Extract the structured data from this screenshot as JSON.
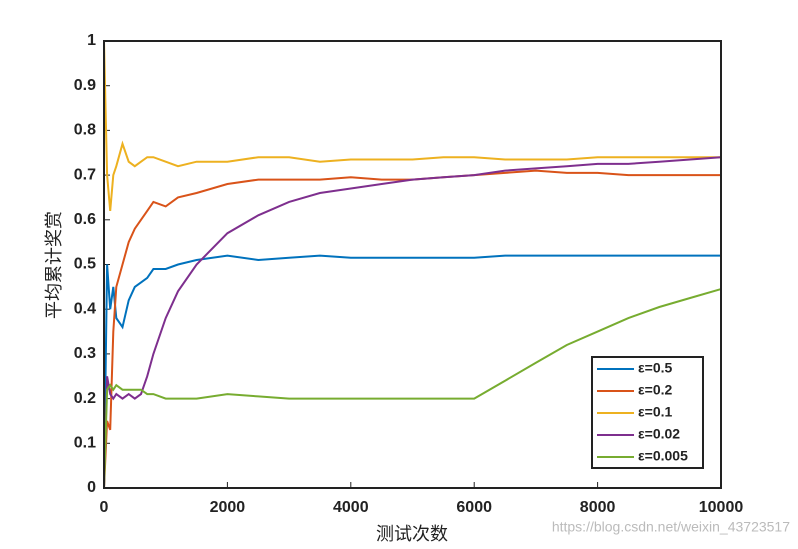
{
  "chart_data": {
    "type": "line",
    "x_label": "测试次数",
    "y_label": "平均累计奖赏",
    "watermark": "https://blog.csdn.net/weixin_43723517",
    "x": [
      0,
      50,
      100,
      150,
      200,
      300,
      400,
      500,
      600,
      700,
      800,
      1000,
      1200,
      1500,
      2000,
      2500,
      3000,
      3500,
      4000,
      4500,
      5000,
      5500,
      6000,
      6500,
      7000,
      7500,
      8000,
      8500,
      9000,
      9500,
      10000
    ],
    "series": [
      {
        "name": "ε=0.5",
        "color": "#0072bd",
        "values": [
          0,
          0.5,
          0.4,
          0.45,
          0.38,
          0.36,
          0.42,
          0.45,
          0.46,
          0.47,
          0.49,
          0.49,
          0.5,
          0.51,
          0.52,
          0.51,
          0.515,
          0.52,
          0.515,
          0.515,
          0.515,
          0.515,
          0.515,
          0.52,
          0.52,
          0.52,
          0.52,
          0.52,
          0.52,
          0.52,
          0.52
        ]
      },
      {
        "name": "ε=0.2",
        "color": "#d95319",
        "values": [
          0,
          0.15,
          0.13,
          0.35,
          0.45,
          0.5,
          0.55,
          0.58,
          0.6,
          0.62,
          0.64,
          0.63,
          0.65,
          0.66,
          0.68,
          0.69,
          0.69,
          0.69,
          0.695,
          0.69,
          0.69,
          0.695,
          0.7,
          0.705,
          0.71,
          0.705,
          0.705,
          0.7,
          0.7,
          0.7,
          0.7
        ]
      },
      {
        "name": "ε=0.1",
        "color": "#edb120",
        "values": [
          1,
          0.7,
          0.62,
          0.7,
          0.72,
          0.77,
          0.73,
          0.72,
          0.73,
          0.74,
          0.74,
          0.73,
          0.72,
          0.73,
          0.73,
          0.74,
          0.74,
          0.73,
          0.735,
          0.735,
          0.735,
          0.74,
          0.74,
          0.735,
          0.735,
          0.735,
          0.74,
          0.74,
          0.74,
          0.74,
          0.74
        ]
      },
      {
        "name": "ε=0.02",
        "color": "#7e2f8e",
        "values": [
          0,
          0.25,
          0.21,
          0.2,
          0.21,
          0.2,
          0.21,
          0.2,
          0.21,
          0.25,
          0.3,
          0.38,
          0.44,
          0.5,
          0.57,
          0.61,
          0.64,
          0.66,
          0.67,
          0.68,
          0.69,
          0.695,
          0.7,
          0.71,
          0.715,
          0.72,
          0.725,
          0.725,
          0.73,
          0.735,
          0.74
        ]
      },
      {
        "name": "ε=0.005",
        "color": "#77ac30",
        "values": [
          0,
          0.22,
          0.23,
          0.22,
          0.23,
          0.22,
          0.22,
          0.22,
          0.22,
          0.21,
          0.21,
          0.2,
          0.2,
          0.2,
          0.21,
          0.205,
          0.2,
          0.2,
          0.2,
          0.2,
          0.2,
          0.2,
          0.2,
          0.24,
          0.28,
          0.32,
          0.35,
          0.38,
          0.405,
          0.425,
          0.445
        ]
      }
    ],
    "xlim": [
      0,
      10000
    ],
    "xticks": [
      0,
      2000,
      4000,
      6000,
      8000,
      10000
    ],
    "ylim": [
      0,
      1
    ],
    "yticks": [
      0,
      0.1,
      0.2,
      0.3,
      0.4,
      0.5,
      0.6,
      0.7,
      0.8,
      0.9,
      1
    ],
    "legend": "lower right"
  }
}
